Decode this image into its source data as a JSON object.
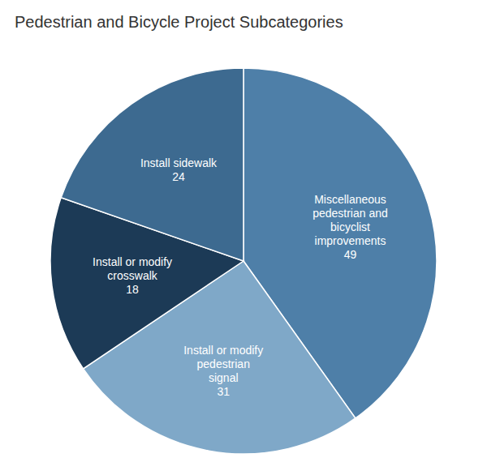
{
  "chart_data": {
    "type": "pie",
    "title": "Pedestrian and Bicycle Project Subcategories",
    "categories": [
      "Miscellaneous\npedestrian and\nbicyclist\nimprovements",
      "Install or modify\npedestrian\nsignal",
      "Install or modify\ncrosswalk",
      "Install sidewalk"
    ],
    "values": [
      49,
      31,
      18,
      24
    ],
    "colors": [
      "#4e7fa8",
      "#7fa8c8",
      "#1c3a56",
      "#3d6a90"
    ],
    "data_labels": true
  }
}
